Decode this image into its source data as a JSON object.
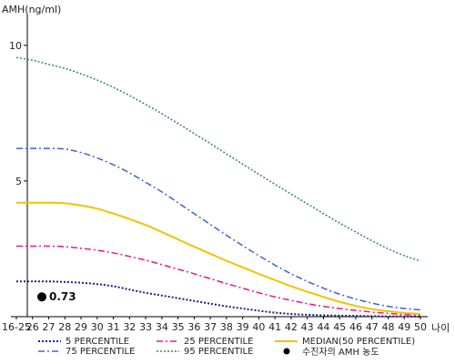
{
  "chart_data": {
    "type": "line",
    "ylabel": "AMH(ng/ml)",
    "xlabel": "나이",
    "ylim": [
      0,
      11
    ],
    "yticks": [
      5,
      10
    ],
    "categories": [
      "16-25",
      "26",
      "27",
      "28",
      "29",
      "30",
      "31",
      "32",
      "33",
      "34",
      "35",
      "36",
      "37",
      "38",
      "39",
      "40",
      "41",
      "42",
      "43",
      "44",
      "45",
      "46",
      "47",
      "48",
      "49",
      "50"
    ],
    "grid": false,
    "legend_position": "bottom",
    "series": [
      {
        "name": "5 PERCENTILE",
        "color": "#1a237e",
        "dash": "2,2",
        "width": 2,
        "values": [
          1.3,
          1.3,
          1.3,
          1.28,
          1.25,
          1.2,
          1.12,
          1.0,
          0.88,
          0.78,
          0.68,
          0.58,
          0.48,
          0.38,
          0.3,
          0.22,
          0.15,
          0.1,
          0.07,
          0.05,
          0.04,
          0.03,
          0.02,
          0.01,
          0.01,
          0.0
        ]
      },
      {
        "name": "25 PERCENTILE",
        "color": "#e6198f",
        "dash": "7,3,2,3",
        "width": 1.5,
        "values": [
          2.6,
          2.6,
          2.6,
          2.58,
          2.52,
          2.45,
          2.35,
          2.22,
          2.08,
          1.92,
          1.75,
          1.58,
          1.4,
          1.22,
          1.05,
          0.88,
          0.73,
          0.6,
          0.48,
          0.38,
          0.3,
          0.23,
          0.17,
          0.12,
          0.08,
          0.06
        ]
      },
      {
        "name": "MEDIAN(50 PERCENTILE)",
        "color": "#f2c200",
        "dash": "",
        "width": 2,
        "values": [
          4.2,
          4.2,
          4.2,
          4.18,
          4.1,
          3.98,
          3.8,
          3.6,
          3.38,
          3.12,
          2.85,
          2.58,
          2.32,
          2.06,
          1.82,
          1.58,
          1.35,
          1.12,
          0.92,
          0.73,
          0.55,
          0.4,
          0.28,
          0.2,
          0.14,
          0.1
        ]
      },
      {
        "name": "75 PERCENTILE",
        "color": "#3f63c9",
        "dash": "7,3,2,3",
        "width": 1.5,
        "values": [
          6.2,
          6.2,
          6.2,
          6.18,
          6.05,
          5.85,
          5.6,
          5.3,
          4.95,
          4.6,
          4.2,
          3.8,
          3.4,
          3.0,
          2.62,
          2.25,
          1.9,
          1.58,
          1.3,
          1.05,
          0.83,
          0.65,
          0.5,
          0.38,
          0.3,
          0.25
        ]
      },
      {
        "name": "95 PERCENTILE",
        "color": "#2e8b57",
        "dash": "2,2",
        "width": 1.5,
        "values": [
          9.55,
          9.45,
          9.3,
          9.15,
          8.95,
          8.72,
          8.45,
          8.15,
          7.82,
          7.48,
          7.12,
          6.75,
          6.38,
          6.0,
          5.62,
          5.25,
          4.88,
          4.52,
          4.16,
          3.8,
          3.45,
          3.12,
          2.8,
          2.5,
          2.25,
          2.05
        ]
      }
    ],
    "marker": {
      "label": "수진자의 AMH 농도",
      "value_text": "0.73",
      "x_category": "16-25",
      "y": 0.73,
      "color": "#000000"
    }
  }
}
